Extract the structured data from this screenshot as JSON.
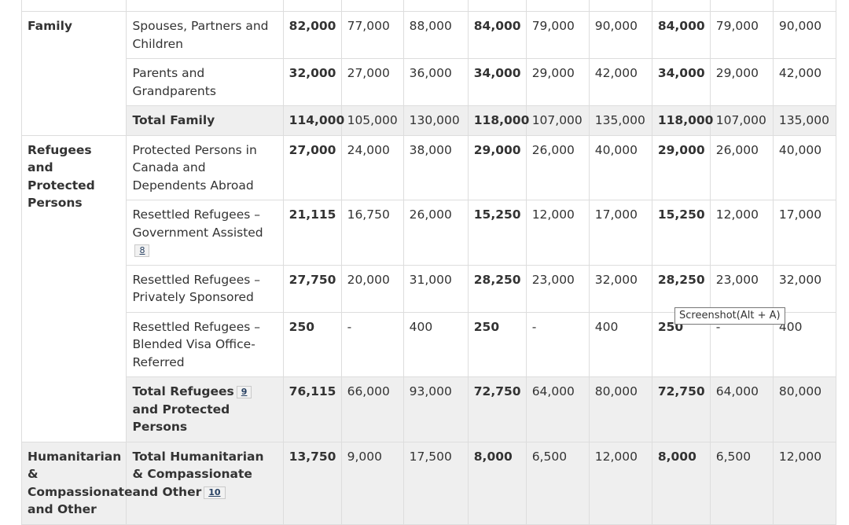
{
  "table": {
    "family": {
      "category": "Family",
      "rows": [
        {
          "label": "Spouses, Partners and Children",
          "values": [
            "82,000",
            "77,000",
            "88,000",
            "84,000",
            "79,000",
            "90,000",
            "84,000",
            "79,000",
            "90,000"
          ]
        },
        {
          "label": "Parents and Grandparents",
          "values": [
            "32,000",
            "27,000",
            "36,000",
            "34,000",
            "29,000",
            "42,000",
            "34,000",
            "29,000",
            "42,000"
          ]
        }
      ],
      "total": {
        "label": "Total Family",
        "values": [
          "114,000",
          "105,000",
          "130,000",
          "118,000",
          "107,000",
          "135,000",
          "118,000",
          "107,000",
          "135,000"
        ]
      }
    },
    "refugees": {
      "category": "Refugees and Protected Persons",
      "rows": [
        {
          "label": "Protected Persons in Canada and Dependents Abroad",
          "values": [
            "27,000",
            "24,000",
            "38,000",
            "29,000",
            "26,000",
            "40,000",
            "29,000",
            "26,000",
            "40,000"
          ]
        },
        {
          "label": "Resettled Refugees – Government Assisted",
          "footnote": "8",
          "values": [
            "21,115",
            "16,750",
            "26,000",
            "15,250",
            "12,000",
            "17,000",
            "15,250",
            "12,000",
            "17,000"
          ]
        },
        {
          "label": "Resettled Refugees – Privately Sponsored",
          "values": [
            "27,750",
            "20,000",
            "31,000",
            "28,250",
            "23,000",
            "32,000",
            "28,250",
            "23,000",
            "32,000"
          ]
        },
        {
          "label": "Resettled Refugees – Blended Visa Office-Referred",
          "values": [
            "250",
            "-",
            "400",
            "250",
            "-",
            "400",
            "250",
            "-",
            "400"
          ]
        }
      ],
      "total": {
        "label_a": "Total Refugees",
        "footnote": "9",
        "label_b": "and Protected Persons",
        "values": [
          "76,115",
          "66,000",
          "93,000",
          "72,750",
          "64,000",
          "80,000",
          "72,750",
          "64,000",
          "80,000"
        ]
      }
    },
    "humanitarian": {
      "category": "Humanitarian & Compassionate and Other",
      "total": {
        "label": "Total Humanitarian & Compassionate and Other",
        "footnote": "10",
        "values": [
          "13,750",
          "9,000",
          "17,500",
          "8,000",
          "6,500",
          "12,000",
          "8,000",
          "6,500",
          "12,000"
        ]
      }
    }
  },
  "tooltip": {
    "text": "Screenshot(Alt + A)"
  }
}
